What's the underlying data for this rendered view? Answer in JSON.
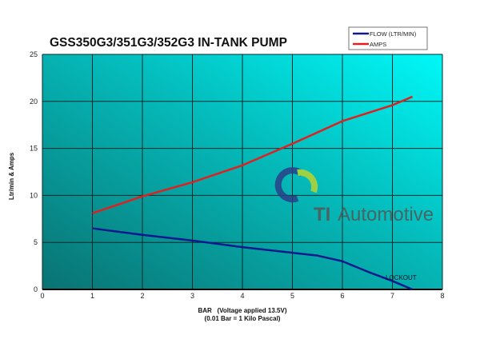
{
  "chart_data": {
    "type": "line",
    "title": "GSS350G3/351G3/352G3 IN-TANK PUMP",
    "xlabel": "BAR   (Voltage applied 13.5V)",
    "xlabel2": "(0.01 Bar = 1 Kilo Pascal)",
    "ylabel": "Ltr/min & Amps",
    "xlim": [
      0,
      8
    ],
    "ylim": [
      0,
      25
    ],
    "xticks": [
      "0",
      "1",
      "2",
      "3",
      "4",
      "5",
      "6",
      "7",
      "8"
    ],
    "yticks": [
      "0",
      "5",
      "10",
      "15",
      "20",
      "25"
    ],
    "grid": true,
    "legend_placement": "top-right",
    "annotation": "LOCKOUT",
    "watermark": "TI Automotive",
    "series": [
      {
        "name": "FLOW (LTR/MIN)",
        "color": "#0a1a8c",
        "x": [
          1,
          2,
          3,
          4,
          5,
          5.5,
          6,
          6.5,
          7,
          7.4
        ],
        "y": [
          6.5,
          5.8,
          5.2,
          4.5,
          3.9,
          3.6,
          3.0,
          1.9,
          0.9,
          0
        ]
      },
      {
        "name": "AMPS",
        "color": "#e02020",
        "x": [
          1,
          2,
          3,
          4,
          5,
          6,
          7,
          7.4
        ],
        "y": [
          8.1,
          9.9,
          11.4,
          13.2,
          15.5,
          17.9,
          19.6,
          20.5
        ]
      }
    ]
  }
}
